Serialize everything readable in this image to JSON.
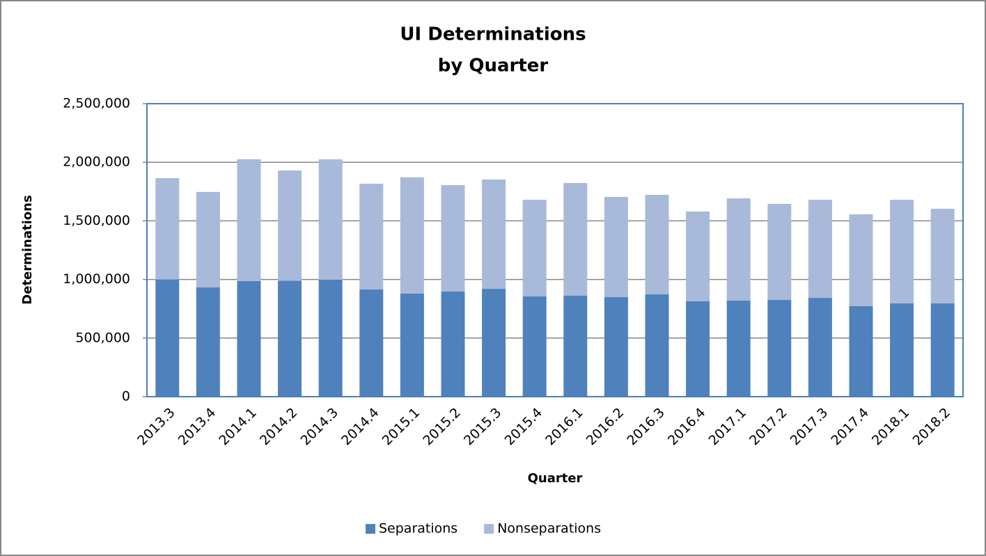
{
  "chart_data": {
    "type": "stacked_bar",
    "title": [
      "UI Determinations",
      "by Quarter"
    ],
    "x_label": "Quarter",
    "y_label": "Determinations",
    "categories": [
      "2013.3",
      "2013.4",
      "2014.1",
      "2014.2",
      "2014.3",
      "2014.4",
      "2015.1",
      "2015.2",
      "2015.3",
      "2015.4",
      "2016.1",
      "2016.2",
      "2016.3",
      "2016.4",
      "2017.1",
      "2017.2",
      "2017.3",
      "2017.4",
      "2018.1",
      "2018.2"
    ],
    "series": [
      {
        "name": "Separations",
        "color": "#4f81bd",
        "values": [
          1000000,
          932000,
          986000,
          990000,
          998000,
          915000,
          879000,
          897000,
          920000,
          855000,
          861000,
          849000,
          873000,
          814000,
          820000,
          825000,
          843000,
          772000,
          796000,
          796000
        ]
      },
      {
        "name": "Nonseparations",
        "color": "#a9b9d9",
        "values": [
          865000,
          815000,
          1040000,
          940000,
          1027000,
          902000,
          992000,
          908000,
          933000,
          825000,
          962000,
          855000,
          849000,
          766000,
          872000,
          820000,
          837000,
          784000,
          884000,
          807000
        ]
      }
    ],
    "ylim": [
      0,
      2500000
    ],
    "yticks": [
      0,
      {
        "value": 500000,
        "label": "500,000"
      },
      {
        "value": 1000000,
        "label": "1,000,000"
      },
      {
        "value": 1500000,
        "label": "1,500,000"
      },
      {
        "value": 2000000,
        "label": "2,000,000"
      },
      {
        "value": 2500000,
        "label": "2,500,000"
      }
    ],
    "grid": true,
    "legend": "bottom"
  }
}
